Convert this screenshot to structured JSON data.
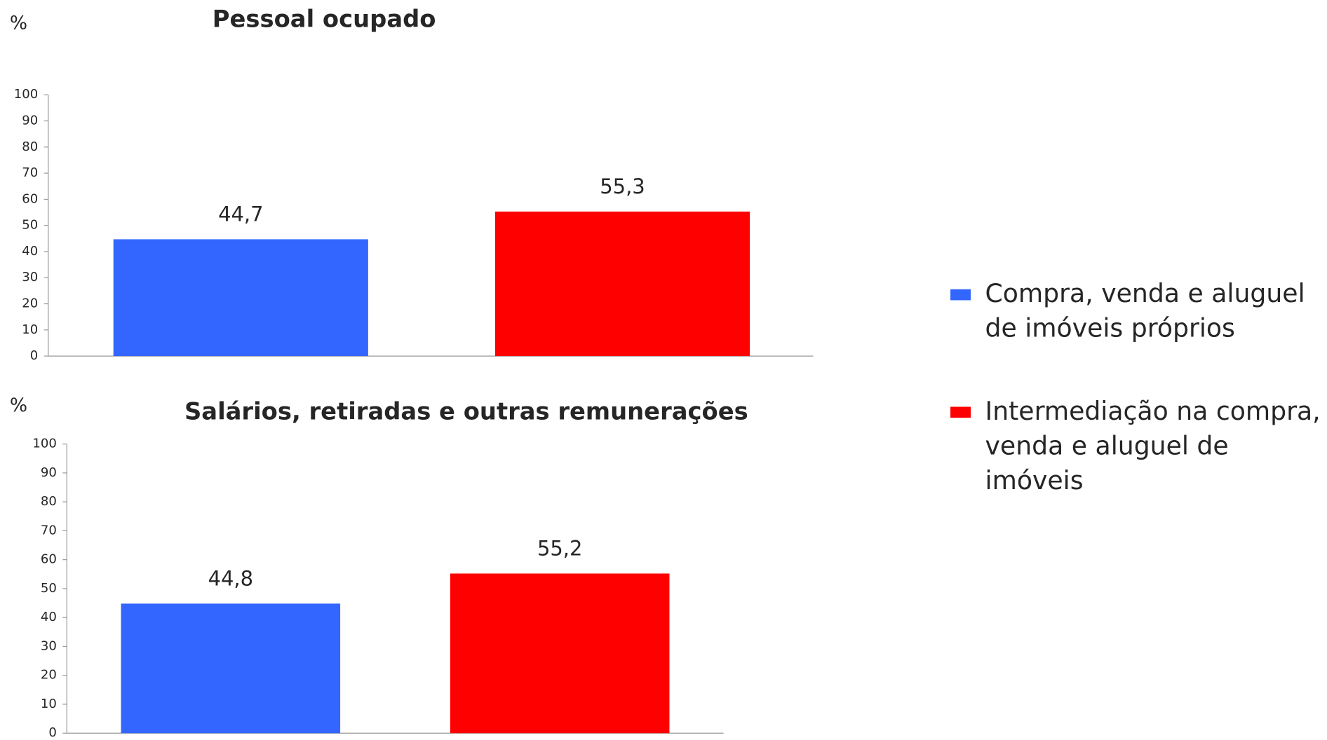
{
  "chart_data": [
    {
      "type": "bar",
      "title": "Pessoal ocupado",
      "ylabel": "%",
      "ylim": [
        0,
        100
      ],
      "yticks": [
        0,
        10,
        20,
        30,
        40,
        50,
        60,
        70,
        80,
        90,
        100
      ],
      "series": [
        {
          "name": "Compra, venda e aluguel de imóveis próprios",
          "color": "#3366ff",
          "values": [
            44.7
          ],
          "value_labels": [
            "44,7"
          ]
        },
        {
          "name": "Intermediação na compra, venda e aluguel de imóveis",
          "color": "#ff0000",
          "values": [
            55.3
          ],
          "value_labels": [
            "55,3"
          ]
        }
      ]
    },
    {
      "type": "bar",
      "title": "Salários, retiradas e outras remunerações",
      "ylabel": "%",
      "ylim": [
        0,
        100
      ],
      "yticks": [
        0,
        10,
        20,
        30,
        40,
        50,
        60,
        70,
        80,
        90,
        100
      ],
      "series": [
        {
          "color": "#3366ff",
          "values": [
            44.8
          ],
          "value_labels": [
            "44,8"
          ]
        },
        {
          "color": "#ff0000",
          "values": [
            55.2
          ],
          "value_labels": [
            "55,2"
          ]
        }
      ]
    }
  ]
}
